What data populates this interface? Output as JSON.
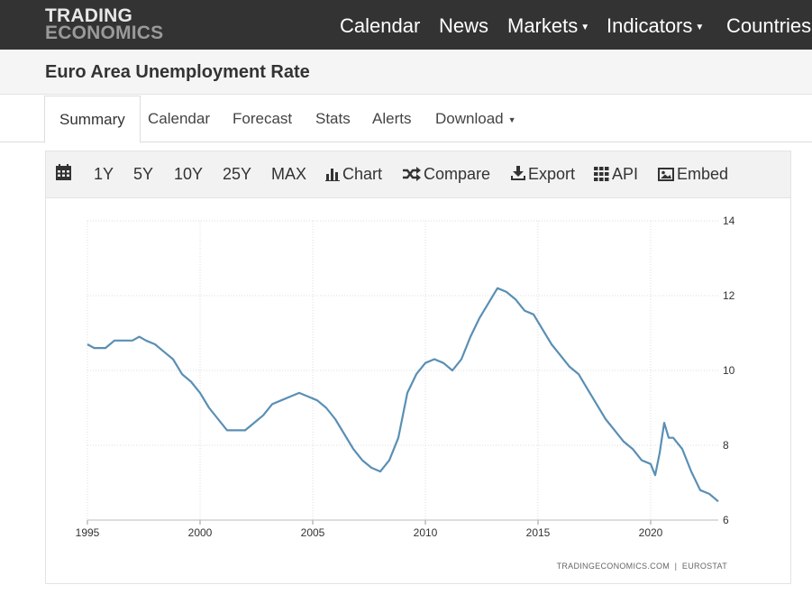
{
  "logo": {
    "line1": "TRADING",
    "line2": "ECONOMICS"
  },
  "nav": [
    {
      "label": "Calendar",
      "dropdown": false
    },
    {
      "label": "News",
      "dropdown": false
    },
    {
      "label": "Markets",
      "dropdown": true
    },
    {
      "label": "Indicators",
      "dropdown": true
    },
    {
      "label": "Countries",
      "dropdown": false
    }
  ],
  "page": {
    "title": "Euro Area Unemployment Rate"
  },
  "tabs": [
    {
      "label": "Summary",
      "active": true
    },
    {
      "label": "Calendar",
      "active": false
    },
    {
      "label": "Forecast",
      "active": false
    },
    {
      "label": "Stats",
      "active": false
    },
    {
      "label": "Alerts",
      "active": false
    },
    {
      "label": "Download",
      "active": false,
      "dropdown": true
    }
  ],
  "toolbar": {
    "ranges": [
      "1Y",
      "5Y",
      "10Y",
      "25Y",
      "MAX"
    ],
    "chart": "Chart",
    "compare": "Compare",
    "export": "Export",
    "api": "API",
    "embed": "Embed"
  },
  "credit": {
    "site": "TRADINGECONOMICS.COM",
    "source": "EUROSTAT"
  },
  "colors": {
    "line": "#5a8fb4",
    "topbar": "#333333",
    "grid": "#dcdcdc"
  },
  "chart_data": {
    "type": "line",
    "title": "",
    "xlabel": "",
    "ylabel": "",
    "xlim": [
      1995,
      2023
    ],
    "ylim": [
      6,
      14
    ],
    "xticks": [
      1995,
      2000,
      2005,
      2010,
      2015,
      2020
    ],
    "yticks": [
      6,
      8,
      10,
      12,
      14
    ],
    "y_axis_side": "right",
    "grid": true,
    "series": [
      {
        "x": [
          1995.0,
          1995.3,
          1995.8,
          1996.2,
          1996.6,
          1997.0,
          1997.3,
          1997.6,
          1998.0,
          1998.4,
          1998.8,
          1999.2,
          1999.6,
          2000.0,
          2000.4,
          2000.8,
          2001.2,
          2001.6,
          2002.0,
          2002.4,
          2002.8,
          2003.2,
          2003.6,
          2004.0,
          2004.4,
          2004.8,
          2005.2,
          2005.6,
          2006.0,
          2006.4,
          2006.8,
          2007.2,
          2007.6,
          2008.0,
          2008.4,
          2008.8,
          2009.2,
          2009.6,
          2010.0,
          2010.4,
          2010.8,
          2011.2,
          2011.6,
          2012.0,
          2012.4,
          2012.8,
          2013.2,
          2013.6,
          2014.0,
          2014.4,
          2014.8,
          2015.2,
          2015.6,
          2016.0,
          2016.4,
          2016.8,
          2017.2,
          2017.6,
          2018.0,
          2018.4,
          2018.8,
          2019.2,
          2019.6,
          2020.0,
          2020.2,
          2020.4,
          2020.6,
          2020.8,
          2021.0,
          2021.4,
          2021.8,
          2022.2,
          2022.6,
          2023.0
        ],
        "y": [
          10.7,
          10.6,
          10.6,
          10.8,
          10.8,
          10.8,
          10.9,
          10.8,
          10.7,
          10.5,
          10.3,
          9.9,
          9.7,
          9.4,
          9.0,
          8.7,
          8.4,
          8.4,
          8.4,
          8.6,
          8.8,
          9.1,
          9.2,
          9.3,
          9.4,
          9.3,
          9.2,
          9.0,
          8.7,
          8.3,
          7.9,
          7.6,
          7.4,
          7.3,
          7.6,
          8.2,
          9.4,
          9.9,
          10.2,
          10.3,
          10.2,
          10.0,
          10.3,
          10.9,
          11.4,
          11.8,
          12.2,
          12.1,
          11.9,
          11.6,
          11.5,
          11.1,
          10.7,
          10.4,
          10.1,
          9.9,
          9.5,
          9.1,
          8.7,
          8.4,
          8.1,
          7.9,
          7.6,
          7.5,
          7.2,
          7.8,
          8.6,
          8.2,
          8.2,
          7.9,
          7.3,
          6.8,
          6.7,
          6.5
        ]
      }
    ]
  }
}
